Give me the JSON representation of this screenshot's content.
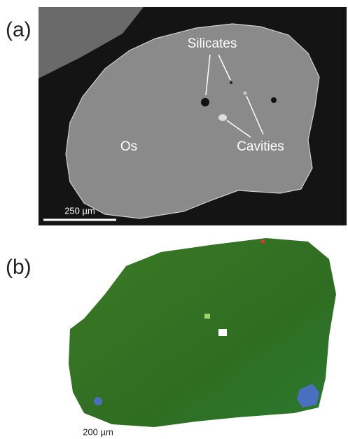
{
  "panels": [
    {
      "label": "(a)",
      "annotations": [
        "Silicates",
        "Cavities",
        "Os"
      ],
      "scale_bar": "250 µm"
    },
    {
      "label": "(b)",
      "scale_bar": "200 µm"
    }
  ]
}
